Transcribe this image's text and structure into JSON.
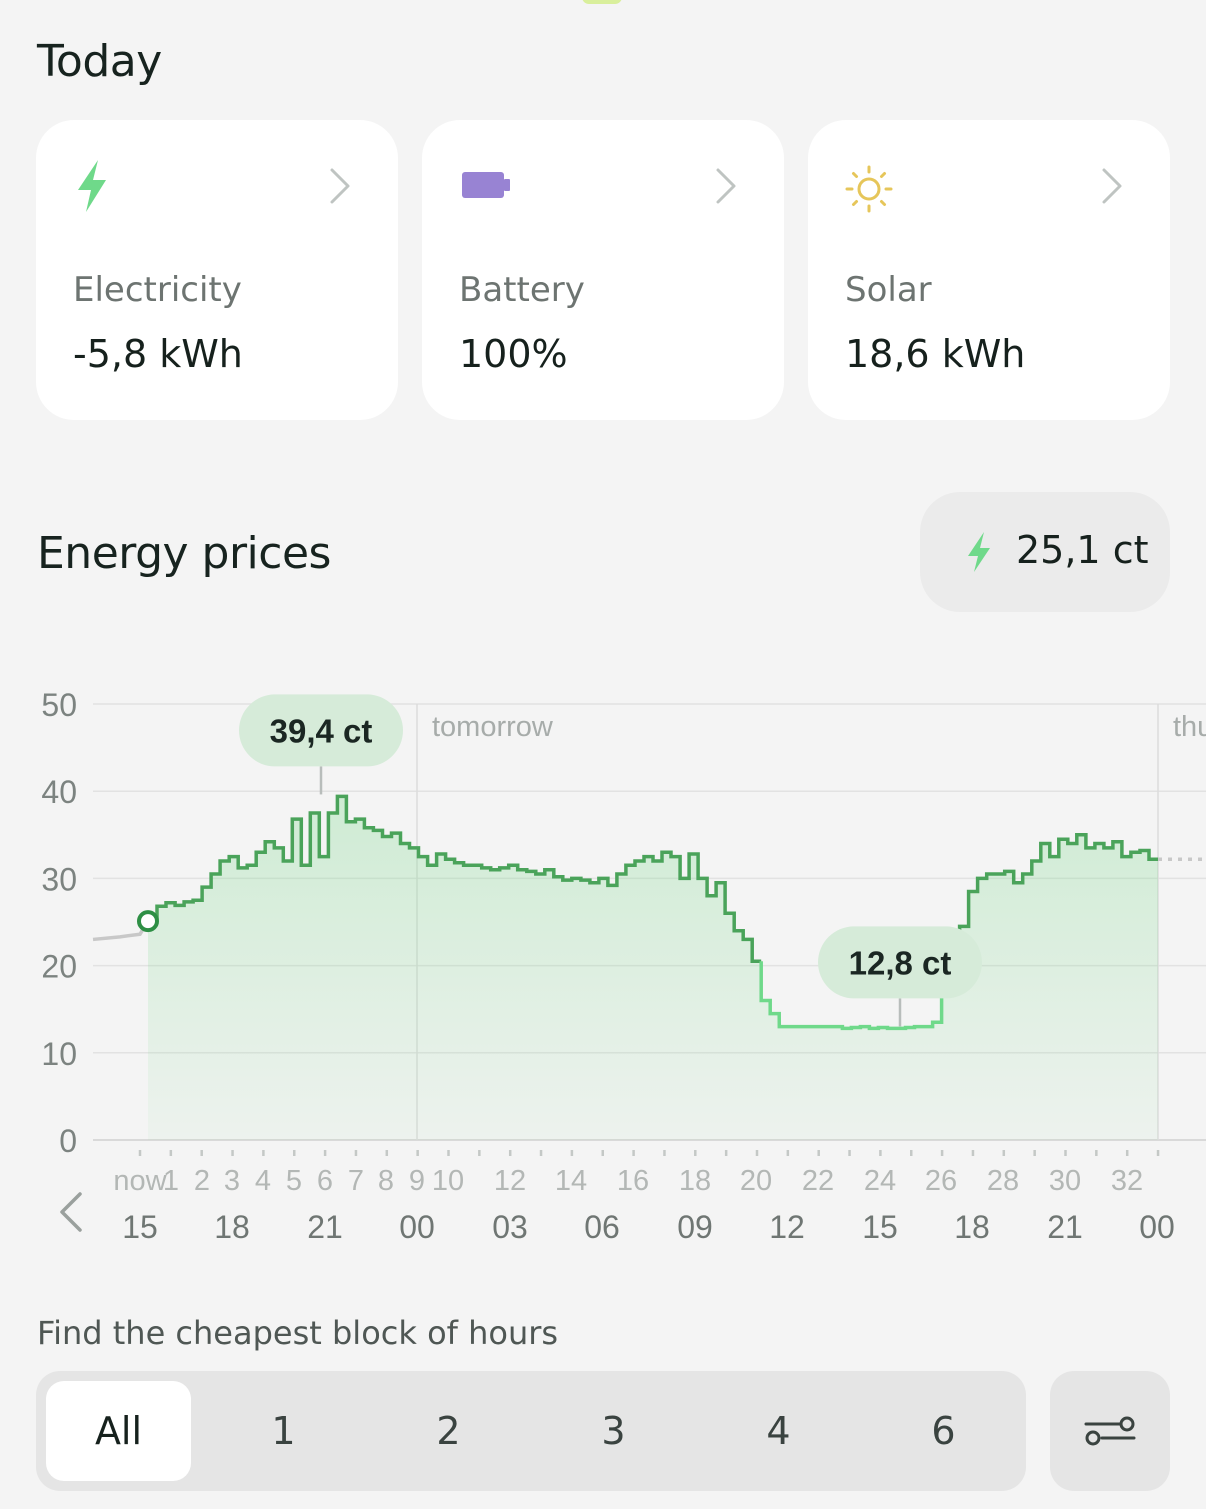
{
  "today": {
    "title": "Today",
    "cards": [
      {
        "label": "Electricity",
        "value": "-5,8 kWh",
        "icon": "bolt-icon",
        "color": "#6fd98a"
      },
      {
        "label": "Battery",
        "value": "100%",
        "icon": "battery-icon",
        "color": "#9883d3"
      },
      {
        "label": "Solar",
        "value": "18,6 kWh",
        "icon": "sun-icon",
        "color": "#e6c65a"
      }
    ]
  },
  "energy": {
    "title": "Energy prices",
    "current_price": "25,1 ct"
  },
  "chart_data": {
    "type": "line",
    "step": true,
    "ylim": [
      0,
      50
    ],
    "y_ticks": [
      0,
      10,
      20,
      30,
      40,
      50
    ],
    "hour_labels": [
      "15",
      "18",
      "21",
      "00",
      "03",
      "06",
      "09",
      "12",
      "15",
      "18",
      "21",
      "00"
    ],
    "slot_labels": [
      "now",
      "1",
      "2",
      "3",
      "4",
      "5",
      "6",
      "7",
      "8",
      "9",
      "10",
      "12",
      "14",
      "16",
      "18",
      "20",
      "22",
      "24",
      "26",
      "28",
      "30",
      "32"
    ],
    "day_labels": [
      "tomorrow",
      "thu"
    ],
    "annotations": [
      {
        "label": "39,4 ct",
        "value": 39.4
      },
      {
        "label": "12,8 ct",
        "value": 12.8
      }
    ],
    "past_values": [
      23.0,
      23.3,
      23.6
    ],
    "current_value": 25.1,
    "series": [
      {
        "values": [
          25.5,
          26.8,
          27.2,
          26.9,
          27.3,
          27.5,
          29.0,
          30.5,
          32.0,
          32.5,
          31.2,
          31.5,
          33.0,
          34.2,
          33.5,
          32.0,
          36.8,
          31.5,
          37.5,
          32.5,
          37.5,
          39.4,
          36.5,
          36.8,
          35.8,
          35.5,
          34.8,
          35.2,
          34.0,
          33.5,
          32.5,
          31.5,
          32.8,
          32.2,
          31.8,
          31.5,
          31.5,
          31.2,
          31.0,
          31.2,
          31.5,
          31.0,
          30.8,
          30.5,
          31.0,
          30.2,
          29.8,
          30.0,
          29.8,
          29.5,
          30.0,
          29.2,
          30.5,
          31.5,
          32.0,
          32.5,
          32.0,
          33.0,
          32.5,
          30.0,
          32.8,
          30.0,
          28.0,
          29.5,
          26.0,
          24.0,
          23.0,
          20.5,
          16.0,
          14.5,
          13.0,
          13.0,
          13.0,
          13.0,
          13.0,
          13.0,
          13.0,
          12.8,
          12.9,
          13.0,
          12.8,
          12.9,
          12.8,
          12.8,
          12.9,
          13.0,
          13.0,
          13.5,
          17.5,
          20.5,
          24.5,
          28.5,
          30.0,
          30.5,
          30.5,
          30.8,
          29.5,
          30.5,
          32.0,
          34.0,
          32.5,
          34.5,
          34.0,
          35.0,
          33.5,
          34.0,
          33.5,
          34.2,
          32.5,
          33.0,
          33.2,
          32.2
        ]
      }
    ]
  },
  "cheapest_block": {
    "title": "Find the cheapest block of hours",
    "options": [
      "All",
      "1",
      "2",
      "3",
      "4",
      "6"
    ]
  }
}
